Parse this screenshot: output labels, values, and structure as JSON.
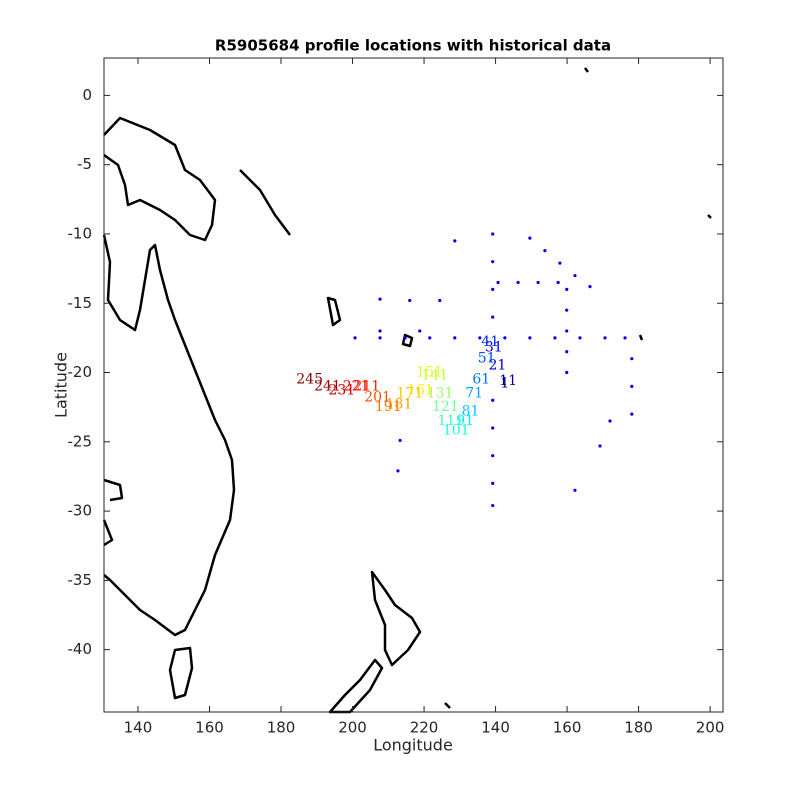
{
  "chart_data": {
    "type": "scatter",
    "title": "R5905684 profile locations with historical data",
    "xlabel": "Longitude",
    "ylabel": "Latitude",
    "xlim": [
      130.5,
      303.6
    ],
    "ylim": [
      -44.5,
      2.7
    ],
    "xticks": [
      140,
      160,
      180,
      200,
      220,
      {
        "value": 240,
        "label": "140"
      },
      {
        "value": 260,
        "label": "160"
      },
      {
        "value": 280,
        "label": "180"
      },
      {
        "value": 300,
        "label": "200"
      }
    ],
    "yticks": [
      0,
      -5,
      -10,
      -15,
      -20,
      -25,
      -30,
      -35,
      -40
    ],
    "series": [
      {
        "color": "#0000ff",
        "x": [
          200.7,
          207.7,
          214.7,
          221.6,
          228.6,
          235.6,
          242.6,
          249.6,
          256.6,
          263.6,
          270.6,
          276.2,
          239.2,
          239.2,
          239.2,
          239.2,
          239.2,
          239.2,
          239.2,
          239.2,
          239.2,
          249.6,
          253.8,
          258,
          262.2,
          266.4,
          259.9,
          259.9,
          259.9,
          259.9,
          259.9,
          240.7,
          246.3,
          251.9,
          257.5,
          278.1,
          278.1,
          278.1,
          216,
          207.7,
          228.6,
          213.3,
          212.7,
          262.2,
          269.2,
          272,
          207.7,
          224.4,
          218.8
        ],
        "y": [
          -17.5,
          -17.5,
          -17.5,
          -17.5,
          -17.5,
          -17.5,
          -17.5,
          -17.5,
          -17.5,
          -17.5,
          -17.5,
          -17.5,
          -10,
          -12,
          -14,
          -16,
          -22,
          -24,
          -26,
          -28,
          -29.6,
          -10.3,
          -11.2,
          -12.1,
          -13,
          -13.8,
          -14,
          -15.5,
          -17,
          -18.5,
          -20,
          -13.5,
          -13.5,
          -13.5,
          -13.5,
          -19,
          -21,
          -23,
          -14.8,
          -14.7,
          -10.5,
          -24.9,
          -27.1,
          -28.5,
          -25.3,
          -23.5,
          -17,
          -14.8,
          -17
        ]
      },
      {
        "colormap": "jet",
        "labels": [
          "1",
          "11",
          "21",
          "31",
          "41",
          "51",
          "61",
          "71",
          "81",
          "91",
          "101",
          "111",
          "121",
          "131",
          "141",
          "151",
          "161",
          "171",
          "181",
          "191",
          "201",
          "211",
          "221",
          "231",
          "241",
          "245"
        ],
        "x": [
          242.6,
          243.5,
          240.5,
          239.5,
          238.5,
          237.5,
          236,
          234,
          233,
          231.5,
          229,
          227.5,
          226,
          224.5,
          223,
          221.5,
          219,
          216,
          213,
          210,
          207,
          204,
          201,
          197,
          193,
          188
        ],
        "y": [
          -20.8,
          -20.6,
          -19.5,
          -18.2,
          -17.8,
          -19,
          -20.5,
          -21.5,
          -22.8,
          -23.5,
          -24.2,
          -23.5,
          -22.5,
          -21.5,
          -20.2,
          -20,
          -21.3,
          -21.5,
          -22.3,
          -22.5,
          -21.8,
          -21,
          -21,
          -21.3,
          -21,
          -20.5
        ]
      }
    ]
  }
}
